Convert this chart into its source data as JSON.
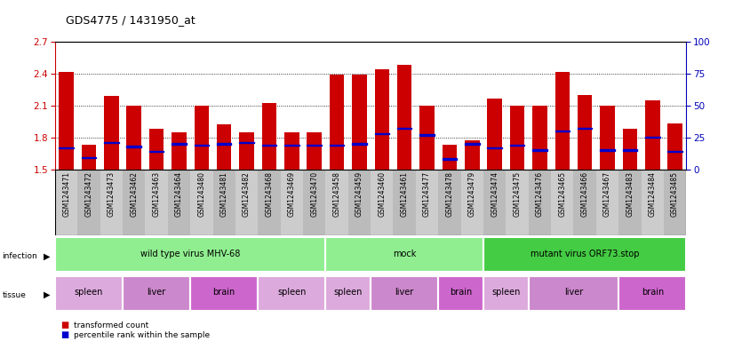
{
  "title": "GDS4775 / 1431950_at",
  "samples": [
    "GSM1243471",
    "GSM1243472",
    "GSM1243473",
    "GSM1243462",
    "GSM1243463",
    "GSM1243464",
    "GSM1243480",
    "GSM1243481",
    "GSM1243482",
    "GSM1243468",
    "GSM1243469",
    "GSM1243470",
    "GSM1243458",
    "GSM1243459",
    "GSM1243460",
    "GSM1243461",
    "GSM1243477",
    "GSM1243478",
    "GSM1243479",
    "GSM1243474",
    "GSM1243475",
    "GSM1243476",
    "GSM1243465",
    "GSM1243466",
    "GSM1243467",
    "GSM1243483",
    "GSM1243484",
    "GSM1243485"
  ],
  "transformed_count": [
    2.42,
    1.73,
    2.19,
    2.1,
    1.88,
    1.85,
    2.1,
    1.92,
    1.85,
    2.12,
    1.85,
    1.85,
    2.39,
    2.39,
    2.44,
    2.48,
    2.1,
    1.73,
    1.77,
    2.17,
    2.1,
    2.1,
    2.42,
    2.2,
    2.1,
    1.88,
    2.15,
    1.93
  ],
  "percentile_rank": [
    17,
    9,
    21,
    18,
    14,
    20,
    19,
    20,
    21,
    19,
    19,
    19,
    19,
    20,
    28,
    32,
    27,
    8,
    20,
    17,
    19,
    15,
    30,
    32,
    15,
    15,
    25,
    14
  ],
  "ylim_left": [
    1.5,
    2.7
  ],
  "ylim_right": [
    0,
    100
  ],
  "yticks_left": [
    1.5,
    1.8,
    2.1,
    2.4,
    2.7
  ],
  "yticks_right": [
    0,
    25,
    50,
    75,
    100
  ],
  "infection_groups": [
    {
      "label": "wild type virus MHV-68",
      "start": 0,
      "end": 12,
      "color": "#98EE98"
    },
    {
      "label": "mock",
      "start": 12,
      "end": 19,
      "color": "#98EE98"
    },
    {
      "label": "mutant virus ORF73.stop",
      "start": 19,
      "end": 28,
      "color": "#44CC44"
    }
  ],
  "tissue_groups": [
    {
      "label": "spleen",
      "start": 0,
      "end": 3,
      "color": "#EE82EE"
    },
    {
      "label": "liver",
      "start": 3,
      "end": 6,
      "color": "#EE82EE"
    },
    {
      "label": "brain",
      "start": 6,
      "end": 9,
      "color": "#EE82EE"
    },
    {
      "label": "spleen",
      "start": 9,
      "end": 12,
      "color": "#EE82EE"
    },
    {
      "label": "spleen",
      "start": 12,
      "end": 14,
      "color": "#EE82EE"
    },
    {
      "label": "liver",
      "start": 14,
      "end": 17,
      "color": "#EE82EE"
    },
    {
      "label": "brain",
      "start": 17,
      "end": 19,
      "color": "#EE82EE"
    },
    {
      "label": "spleen",
      "start": 19,
      "end": 21,
      "color": "#EE82EE"
    },
    {
      "label": "liver",
      "start": 21,
      "end": 25,
      "color": "#EE82EE"
    },
    {
      "label": "brain",
      "start": 25,
      "end": 28,
      "color": "#EE82EE"
    }
  ],
  "bar_color": "#CC0000",
  "percentile_color": "#0000CC",
  "left_axis_color": "#CC0000",
  "right_axis_color": "#0000BB",
  "label_bg_even": "#CCCCCC",
  "label_bg_odd": "#BBBBBB",
  "inf_color_wt": "#88EE88",
  "inf_color_mock": "#88EE88",
  "inf_color_mut": "#44BB44",
  "spleen_color": "#DDAADD",
  "liver_color": "#CC88CC",
  "brain_color": "#BB66BB"
}
